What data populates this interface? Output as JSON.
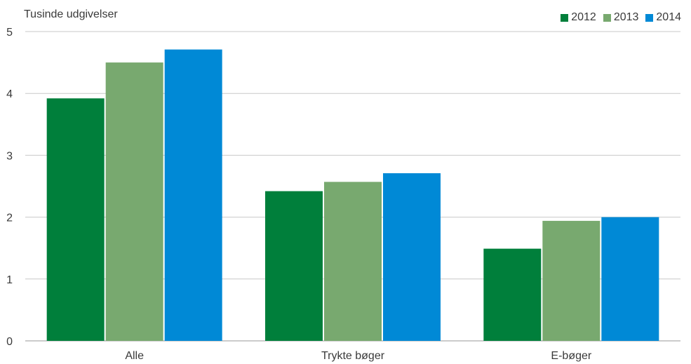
{
  "chart_data": {
    "type": "bar",
    "ylabel": "Tusinde udgivelser",
    "categories": [
      "Alle",
      "Trykte bøger",
      "E-bøger"
    ],
    "series": [
      {
        "name": "2012",
        "color": "#007f3b",
        "values": [
          3.92,
          2.42,
          1.49
        ]
      },
      {
        "name": "2013",
        "color": "#78a96f",
        "values": [
          4.5,
          2.57,
          1.94
        ]
      },
      {
        "name": "2014",
        "color": "#0089d6",
        "values": [
          4.71,
          2.71,
          2.0
        ]
      }
    ],
    "ylim": [
      0,
      5
    ],
    "yticks": [
      "0",
      "1",
      "2",
      "3",
      "4",
      "5"
    ],
    "grid": true,
    "legend_position": "top-right"
  }
}
